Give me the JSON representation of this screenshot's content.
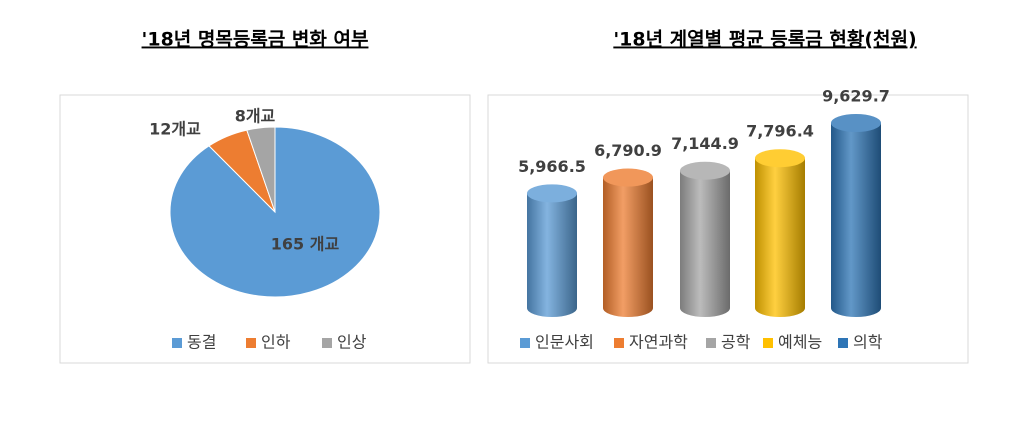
{
  "chart_data": [
    {
      "type": "pie",
      "title": "'18년 명목등록금 변화 여부",
      "categories": [
        "동결",
        "인하",
        "인상"
      ],
      "values": [
        165,
        12,
        8
      ],
      "value_labels": [
        "165 개교",
        "12개교",
        "8개교"
      ],
      "colors": [
        "#5b9bd5",
        "#ed7d31",
        "#a5a5a5"
      ],
      "legend": "bottom"
    },
    {
      "type": "bar",
      "title": "'18년 계열별 평균 등록금 현황(천원)",
      "categories": [
        "인문사회",
        "자연과학",
        "공학",
        "예체능",
        "의학"
      ],
      "values": [
        5966.5,
        6790.9,
        7144.9,
        7796.4,
        9629.7
      ],
      "value_labels": [
        "5,966.5",
        "6,790.9",
        "7,144.9",
        "7,796.4",
        "9,629.7"
      ],
      "colors": [
        "#5b9bd5",
        "#ed7d31",
        "#a5a5a5",
        "#ffc000",
        "#2e75b6"
      ],
      "legend": "bottom"
    }
  ]
}
